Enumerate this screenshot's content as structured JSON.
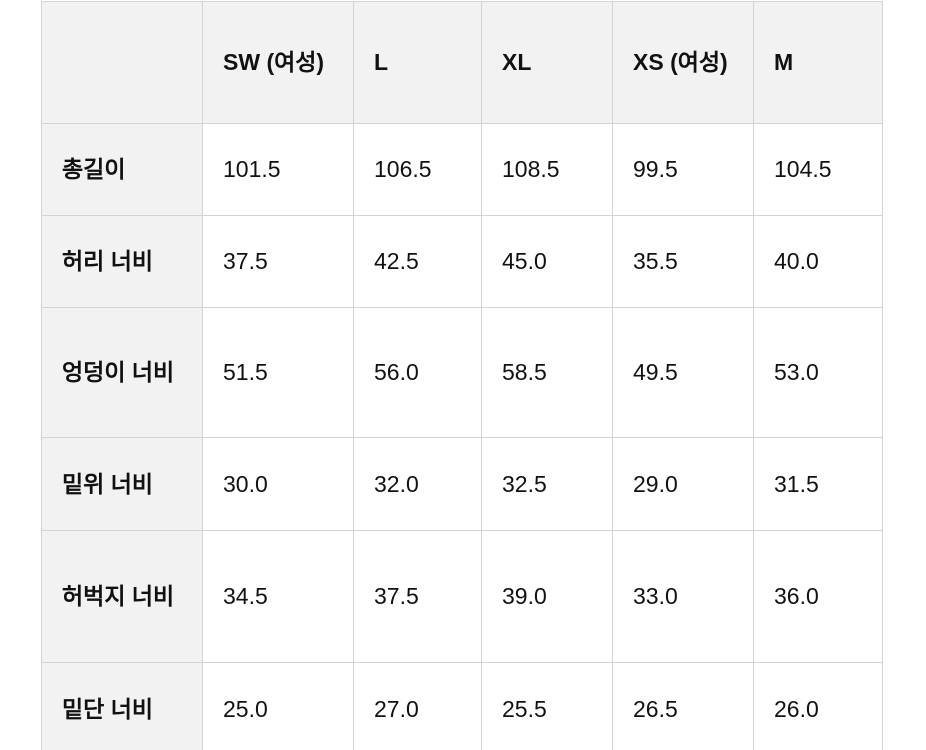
{
  "table": {
    "columns": [
      "",
      "SW (여성)",
      "L",
      "XL",
      "XS (여성)",
      "M"
    ],
    "rows": [
      {
        "label": "총길이",
        "values": [
          "101.5",
          "106.5",
          "108.5",
          "99.5",
          "104.5"
        ]
      },
      {
        "label": "허리 너비",
        "values": [
          "37.5",
          "42.5",
          "45.0",
          "35.5",
          "40.0"
        ]
      },
      {
        "label": "엉덩이 너비",
        "values": [
          "51.5",
          "56.0",
          "58.5",
          "49.5",
          "53.0"
        ]
      },
      {
        "label": "밑위 너비",
        "values": [
          "30.0",
          "32.0",
          "32.5",
          "29.0",
          "31.5"
        ]
      },
      {
        "label": "허벅지 너비",
        "values": [
          "34.5",
          "37.5",
          "39.0",
          "33.0",
          "36.0"
        ]
      },
      {
        "label": "밑단 너비",
        "values": [
          "25.0",
          "27.0",
          "25.5",
          "26.5",
          "26.0"
        ]
      }
    ]
  },
  "chart_data": {
    "type": "table",
    "title": "",
    "categories": [
      "SW (여성)",
      "L",
      "XL",
      "XS (여성)",
      "M"
    ],
    "series": [
      {
        "name": "총길이",
        "values": [
          101.5,
          106.5,
          108.5,
          99.5,
          104.5
        ]
      },
      {
        "name": "허리 너비",
        "values": [
          37.5,
          42.5,
          45.0,
          35.5,
          40.0
        ]
      },
      {
        "name": "엉덩이 너비",
        "values": [
          51.5,
          56.0,
          58.5,
          49.5,
          53.0
        ]
      },
      {
        "name": "밑위 너비",
        "values": [
          30.0,
          32.0,
          32.5,
          29.0,
          31.5
        ]
      },
      {
        "name": "허벅지 너비",
        "values": [
          34.5,
          37.5,
          39.0,
          33.0,
          36.0
        ]
      },
      {
        "name": "밑단 너비",
        "values": [
          25.0,
          27.0,
          25.5,
          26.5,
          26.0
        ]
      }
    ]
  },
  "colors": {
    "header_background": "#f2f2f3",
    "cell_background": "#ffffff",
    "border": "#d4d4d4",
    "text": "#111111"
  }
}
